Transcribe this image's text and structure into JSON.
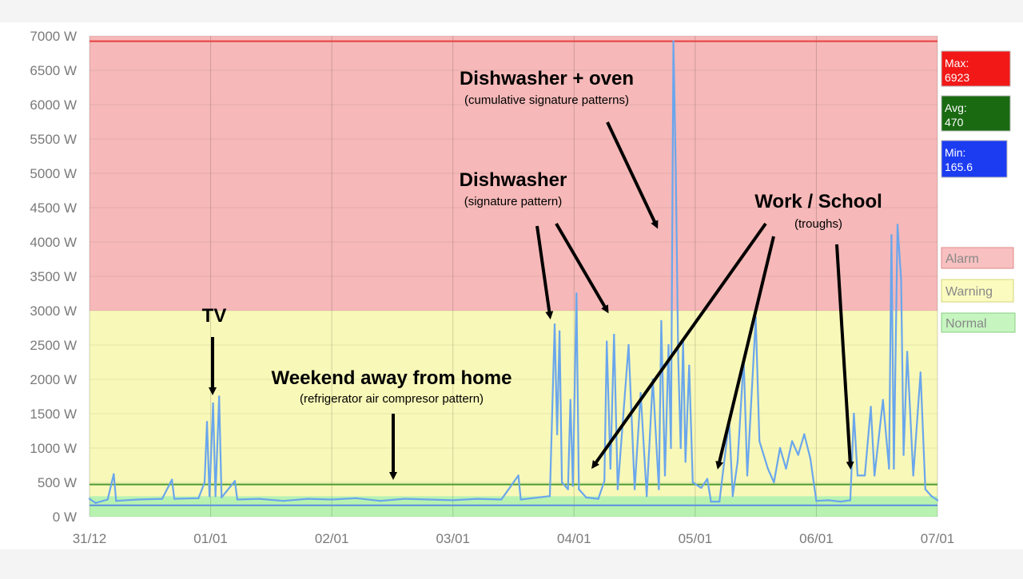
{
  "chart_data": {
    "type": "line",
    "unit": "W",
    "x": {
      "ticks": [
        "31/12",
        "01/01",
        "02/01",
        "03/01",
        "04/01",
        "05/01",
        "06/01",
        "07/01"
      ],
      "range_days": [
        0,
        7
      ]
    },
    "y": {
      "ticks": [
        "0 W",
        "500 W",
        "1000 W",
        "1500 W",
        "2000 W",
        "2500 W",
        "3000 W",
        "3500 W",
        "4000 W",
        "4500 W",
        "5000 W",
        "5500 W",
        "6000 W",
        "6500 W",
        "7000 W"
      ],
      "ylim": [
        0,
        7000
      ]
    },
    "grid": true,
    "bands": [
      {
        "name": "Normal",
        "from": 0,
        "to": 300,
        "color": "#b8f2b0"
      },
      {
        "name": "Warning",
        "from": 300,
        "to": 3000,
        "color": "#f8f8b8"
      },
      {
        "name": "Alarm",
        "from": 3000,
        "to": 7000,
        "color": "#f6b8b8"
      }
    ],
    "reference_lines": [
      {
        "name": "Max",
        "value": 6923,
        "color": "#e84040"
      },
      {
        "name": "Avg",
        "value": 470,
        "color": "#4a9a30"
      },
      {
        "name": "Min",
        "value": 165.6,
        "color": "#5a8de0"
      }
    ],
    "series": [
      {
        "color": "#6aa6ec",
        "points": [
          [
            0.0,
            260
          ],
          [
            0.05,
            200
          ],
          [
            0.15,
            250
          ],
          [
            0.2,
            620
          ],
          [
            0.22,
            230
          ],
          [
            0.4,
            250
          ],
          [
            0.6,
            260
          ],
          [
            0.68,
            540
          ],
          [
            0.7,
            260
          ],
          [
            0.9,
            270
          ],
          [
            0.95,
            500
          ],
          [
            0.97,
            1380
          ],
          [
            0.99,
            300
          ],
          [
            1.02,
            1650
          ],
          [
            1.04,
            300
          ],
          [
            1.07,
            1750
          ],
          [
            1.09,
            280
          ],
          [
            1.2,
            520
          ],
          [
            1.22,
            250
          ],
          [
            1.4,
            260
          ],
          [
            1.6,
            230
          ],
          [
            1.8,
            260
          ],
          [
            2.0,
            250
          ],
          [
            2.2,
            270
          ],
          [
            2.4,
            230
          ],
          [
            2.6,
            260
          ],
          [
            2.8,
            250
          ],
          [
            3.0,
            240
          ],
          [
            3.2,
            260
          ],
          [
            3.4,
            250
          ],
          [
            3.54,
            600
          ],
          [
            3.56,
            250
          ],
          [
            3.8,
            300
          ],
          [
            3.84,
            2800
          ],
          [
            3.86,
            1200
          ],
          [
            3.88,
            2700
          ],
          [
            3.9,
            500
          ],
          [
            3.95,
            400
          ],
          [
            3.97,
            1700
          ],
          [
            3.99,
            450
          ],
          [
            4.02,
            3250
          ],
          [
            4.04,
            400
          ],
          [
            4.1,
            280
          ],
          [
            4.2,
            260
          ],
          [
            4.25,
            520
          ],
          [
            4.27,
            2550
          ],
          [
            4.3,
            700
          ],
          [
            4.33,
            2650
          ],
          [
            4.36,
            400
          ],
          [
            4.45,
            2500
          ],
          [
            4.5,
            400
          ],
          [
            4.55,
            1800
          ],
          [
            4.6,
            300
          ],
          [
            4.65,
            2000
          ],
          [
            4.7,
            400
          ],
          [
            4.72,
            2850
          ],
          [
            4.75,
            600
          ],
          [
            4.78,
            2500
          ],
          [
            4.8,
            1000
          ],
          [
            4.82,
            6923
          ],
          [
            4.84,
            5000
          ],
          [
            4.86,
            2300
          ],
          [
            4.88,
            1000
          ],
          [
            4.9,
            2550
          ],
          [
            4.92,
            800
          ],
          [
            4.95,
            2200
          ],
          [
            4.98,
            500
          ],
          [
            5.05,
            420
          ],
          [
            5.1,
            550
          ],
          [
            5.13,
            220
          ],
          [
            5.2,
            220
          ],
          [
            5.28,
            1400
          ],
          [
            5.31,
            300
          ],
          [
            5.35,
            800
          ],
          [
            5.4,
            2300
          ],
          [
            5.43,
            600
          ],
          [
            5.5,
            2900
          ],
          [
            5.53,
            1100
          ],
          [
            5.6,
            700
          ],
          [
            5.65,
            500
          ],
          [
            5.7,
            1000
          ],
          [
            5.75,
            700
          ],
          [
            5.8,
            1100
          ],
          [
            5.85,
            900
          ],
          [
            5.9,
            1200
          ],
          [
            5.95,
            850
          ],
          [
            6.0,
            230
          ],
          [
            6.1,
            240
          ],
          [
            6.2,
            220
          ],
          [
            6.28,
            240
          ],
          [
            6.31,
            1500
          ],
          [
            6.34,
            600
          ],
          [
            6.4,
            600
          ],
          [
            6.45,
            1600
          ],
          [
            6.48,
            600
          ],
          [
            6.55,
            1700
          ],
          [
            6.6,
            700
          ],
          [
            6.62,
            4100
          ],
          [
            6.64,
            700
          ],
          [
            6.67,
            4250
          ],
          [
            6.7,
            3450
          ],
          [
            6.72,
            900
          ],
          [
            6.75,
            2400
          ],
          [
            6.8,
            600
          ],
          [
            6.86,
            2100
          ],
          [
            6.9,
            400
          ],
          [
            6.95,
            300
          ],
          [
            7.0,
            240
          ]
        ]
      }
    ]
  },
  "stats": [
    {
      "label": "Max:",
      "value": "6923",
      "color": "#f21818"
    },
    {
      "label": "Avg:",
      "value": "470",
      "color": "#1a6a12"
    },
    {
      "label": "Min:",
      "value": "165.6",
      "color": "#1c3cf2"
    }
  ],
  "legend": [
    {
      "label": "Alarm",
      "color": "#f8c0c0"
    },
    {
      "label": "Warning",
      "color": "#fbfbc0"
    },
    {
      "label": "Normal",
      "color": "#c6f5c0"
    }
  ],
  "annotations": {
    "tv": {
      "title": "TV"
    },
    "weekend": {
      "title": "Weekend away from home",
      "subtitle": "(refrigerator air compresor pattern)"
    },
    "dishwasher": {
      "title": "Dishwasher",
      "subtitle": "(signature pattern)"
    },
    "dish_oven": {
      "title": "Dishwasher + oven",
      "subtitle": "(cumulative signature patterns)"
    },
    "work": {
      "title": "Work / School",
      "subtitle": "(troughs)"
    }
  }
}
